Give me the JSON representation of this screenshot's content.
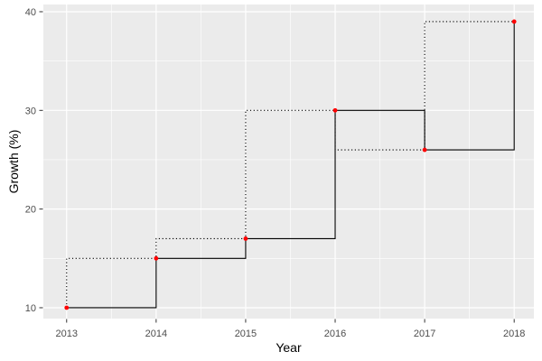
{
  "chart_data": {
    "type": "line",
    "subtype": "step",
    "title": "",
    "xlabel": "Year",
    "ylabel": "Growth (%)",
    "x": [
      2013,
      2014,
      2015,
      2016,
      2017,
      2018
    ],
    "y": [
      10,
      15,
      17,
      30,
      26,
      39
    ],
    "series": [
      {
        "name": "step-hv-solid",
        "direction": "hv",
        "linestyle": "solid",
        "color": "#000000"
      },
      {
        "name": "step-vh-dotted",
        "direction": "vh",
        "linestyle": "dotted",
        "color": "#000000"
      }
    ],
    "points": {
      "color": "#FF0000",
      "radius": 2.4
    },
    "x_ticks": [
      2013,
      2014,
      2015,
      2016,
      2017,
      2018
    ],
    "y_ticks": [
      10,
      20,
      30,
      40
    ],
    "x_minor_ticks": [
      2013.5,
      2014.5,
      2015.5,
      2016.5,
      2017.5
    ],
    "y_minor_ticks": [
      15,
      25,
      35
    ],
    "xlim": [
      2012.74,
      2018.22
    ],
    "ylim": [
      8.9,
      40.73
    ],
    "grid": "on",
    "legend": "none",
    "panel_bg": "#EBEBEB",
    "grid_color": "#FFFFFF",
    "tick_color": "#333333",
    "tick_label_color": "#4D4D4D"
  }
}
